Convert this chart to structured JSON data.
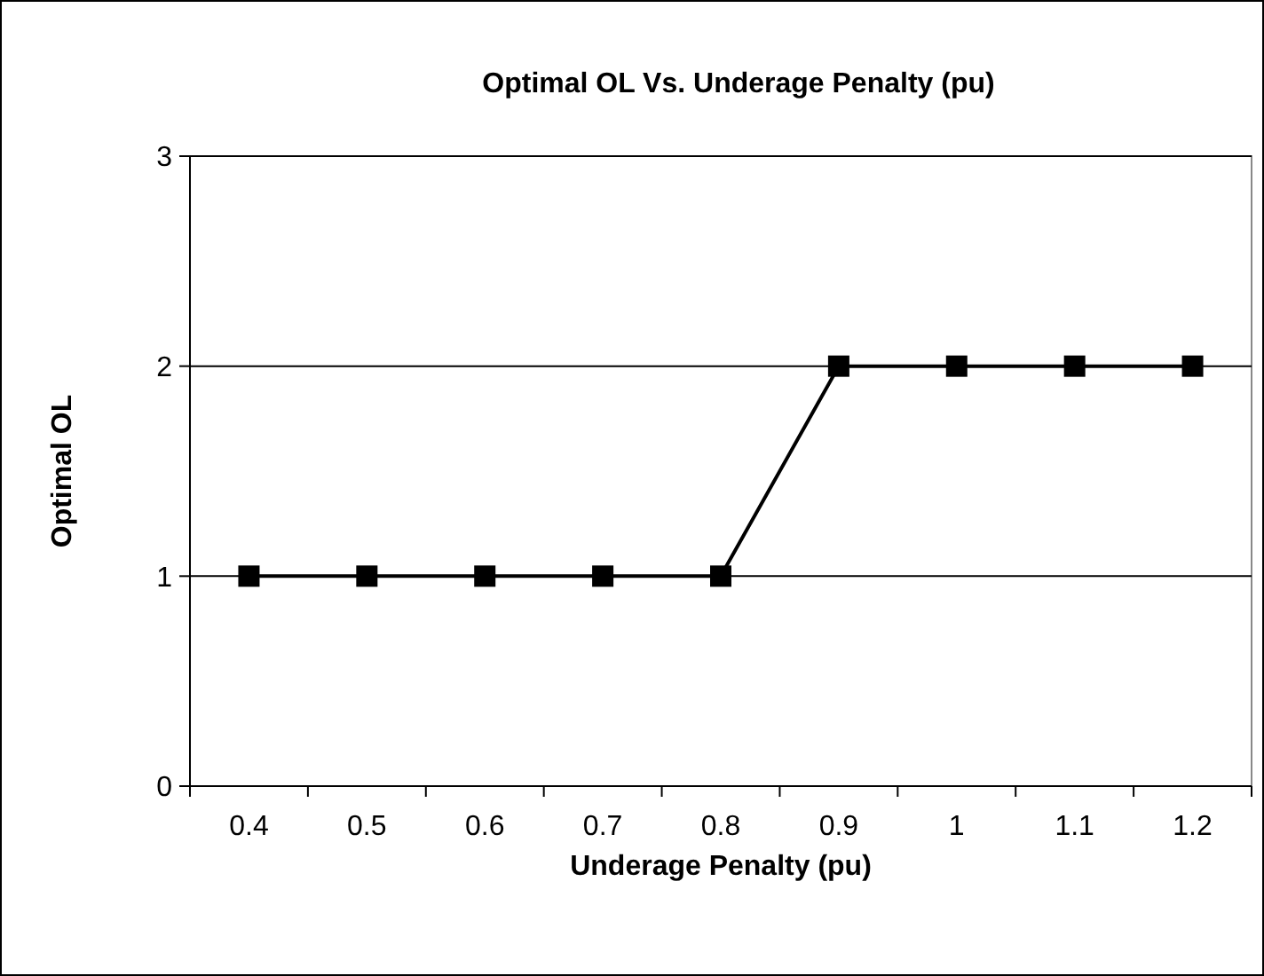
{
  "chart_data": {
    "type": "line",
    "title": "Optimal OL Vs. Underage Penalty (pu)",
    "xlabel": "Underage Penalty (pu)",
    "ylabel": "Optimal OL",
    "categories": [
      "0.4",
      "0.5",
      "0.6",
      "0.7",
      "0.8",
      "0.9",
      "1",
      "1.1",
      "1.2"
    ],
    "series": [
      {
        "color": "#000000",
        "values": [
          1,
          1,
          1,
          1,
          1,
          2,
          2,
          2,
          2
        ]
      }
    ],
    "ylim": [
      0,
      3
    ],
    "yticks": [
      0,
      1,
      2,
      3
    ],
    "grid": "y",
    "marker": "square",
    "line_style": "solid"
  }
}
